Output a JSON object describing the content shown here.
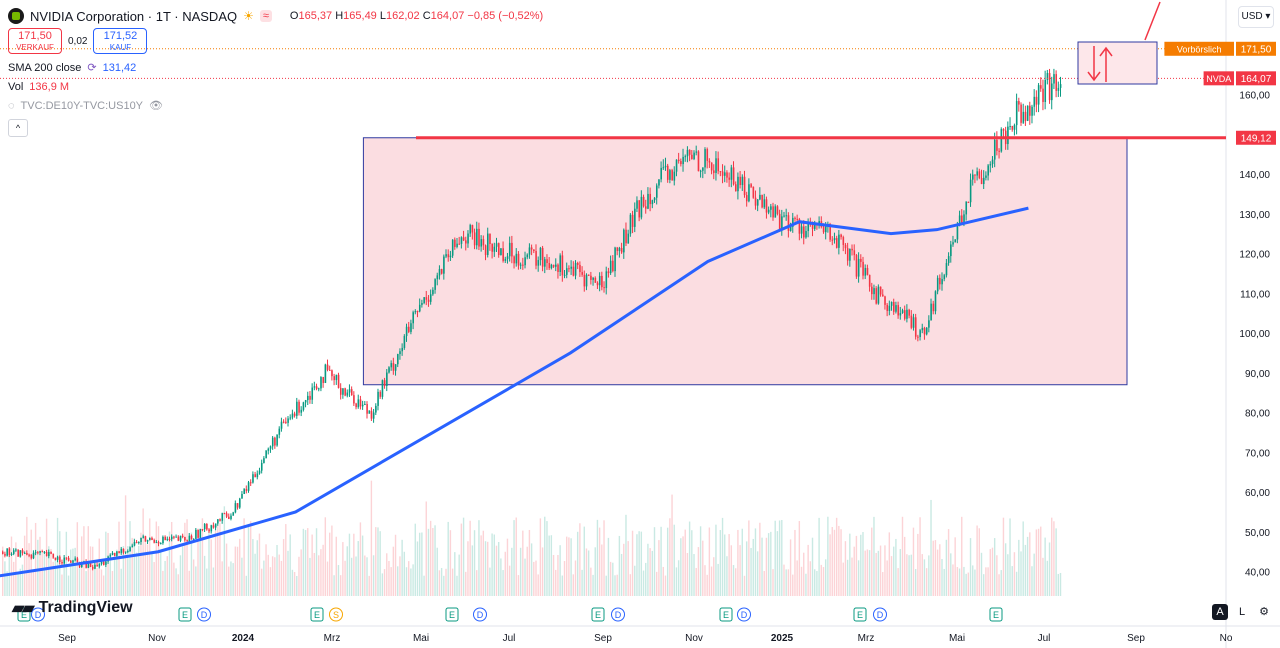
{
  "header": {
    "title": "NVIDIA Corporation · 1T · NASDAQ",
    "open_label": "O",
    "open": "165,37",
    "high_label": "H",
    "high": "165,49",
    "low_label": "L",
    "low": "162,02",
    "close_label": "C",
    "close": "164,07",
    "change": "−0,85 (−0,52%)"
  },
  "trade": {
    "sell_price": "171,50",
    "sell_label": "VERKAUF",
    "spread": "0,02",
    "buy_price": "171,52",
    "buy_label": "KAUF"
  },
  "indicators": {
    "sma_label": "SMA 200 close",
    "sma_value": "131,42",
    "vol_label": "Vol",
    "vol_value": "136,9 M",
    "compare_label": "TVC:DE10Y-TVC:US10Y"
  },
  "currency": "USD",
  "brand": "TradingView",
  "bottom_right": {
    "auto": "A",
    "log": "L"
  },
  "price_axis": {
    "ticks": [
      "160,00",
      "150,00",
      "140,00",
      "130,00",
      "120,00",
      "110,00",
      "100,00",
      "90,00",
      "80,00",
      "70,00",
      "60,00",
      "50,00",
      "40,00"
    ],
    "labels": [
      {
        "text": "Vorbörslich",
        "value": "171,50",
        "color": "#f57c00"
      },
      {
        "text": "NVDA",
        "value": "164,07",
        "color": "#f23645"
      },
      {
        "text": "",
        "value": "149,12",
        "color": "#f23645"
      }
    ]
  },
  "time_axis": [
    "Sep",
    "Nov",
    "2024",
    "Mrz",
    "Mai",
    "Jul",
    "Sep",
    "Nov",
    "2025",
    "Mrz",
    "Mai",
    "Jul",
    "Sep",
    "No"
  ],
  "events": [
    "E",
    "D",
    "E",
    "D",
    "E",
    "S",
    "E",
    "D",
    "E",
    "D",
    "E",
    "D",
    "E",
    "D",
    "E"
  ],
  "colors": {
    "up": "#089981",
    "down": "#f23645",
    "sma": "#2962ff",
    "box_fill": "#fbdde1",
    "box_stroke": "#2f3aa0"
  },
  "chart_data": {
    "type": "candlestick",
    "title": "NVIDIA Corporation · 1T · NASDAQ",
    "ylabel": "USD",
    "ylim": [
      35,
      175
    ],
    "x": [
      "2023-08",
      "2023-09",
      "2023-10",
      "2023-11",
      "2023-12",
      "2024-01",
      "2024-02",
      "2024-03",
      "2024-04",
      "2024-05",
      "2024-06",
      "2024-07",
      "2024-08",
      "2024-09",
      "2024-10",
      "2024-11",
      "2024-12",
      "2025-01",
      "2025-02",
      "2025-03",
      "2025-04",
      "2025-05",
      "2025-06",
      "2025-07"
    ],
    "close_approx": [
      45,
      44,
      41,
      48,
      48,
      55,
      75,
      90,
      80,
      105,
      125,
      120,
      118,
      112,
      135,
      145,
      138,
      128,
      125,
      110,
      100,
      135,
      155,
      164
    ],
    "series": [
      {
        "name": "SMA 200 close",
        "last": 131.42,
        "x": [
          "2023-08",
          "2023-12",
          "2024-03",
          "2024-06",
          "2024-09",
          "2024-12",
          "2025-02",
          "2025-04",
          "2025-05",
          "2025-07"
        ],
        "values": [
          38,
          45,
          55,
          75,
          95,
          118,
          128,
          125,
          126,
          131.42
        ]
      }
    ],
    "range_box": {
      "x_from": "2024-04",
      "x_to": "2025-09",
      "y_from": 87,
      "y_to": 149.12
    },
    "horizontal_line": 149.12,
    "preliminary_price": 171.5
  }
}
